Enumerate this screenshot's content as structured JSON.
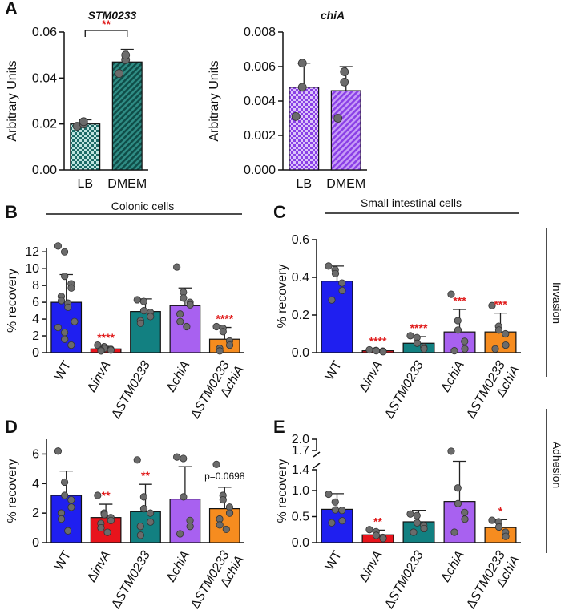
{
  "figure": {
    "panel_letters": [
      "A",
      "B",
      "C",
      "D",
      "E"
    ],
    "group_titles": {
      "colonic": "Colonic cells",
      "small_intestinal": "Small intestinal cells"
    },
    "side_labels": {
      "invasion": "Invasion",
      "adhesion": "Adhesion"
    }
  },
  "colors": {
    "WT": "#1f1ff0",
    "invA": "#e8141c",
    "STM0233": "#128081",
    "chiA": "#a861f0",
    "double": "#f68c1f",
    "teal_pattern": "#1c6b66",
    "purple_pattern": "#8a3fe6",
    "significance": "#e01b1b",
    "points": "#6b6b6b"
  },
  "chart_data": [
    {
      "id": "A1",
      "type": "bar",
      "title": "STM0233",
      "ylabel": "Arbitrary Units",
      "xlabel": "",
      "categories": [
        "LB",
        "DMEM"
      ],
      "values": [
        0.02,
        0.047
      ],
      "sd": [
        0.0018,
        0.0055
      ],
      "points": [
        [
          0.019,
          0.02,
          0.021
        ],
        [
          0.042,
          0.048,
          0.05
        ]
      ],
      "ylim": [
        0,
        0.06
      ],
      "yticks": [
        "0.00",
        "0.02",
        "0.04",
        "0.06"
      ],
      "ytick_values": [
        0,
        0.02,
        0.04,
        0.06
      ],
      "bracket": {
        "between": [
          0,
          1
        ],
        "label": "**"
      }
    },
    {
      "id": "A2",
      "type": "bar",
      "title": "chiA",
      "ylabel": "Arbitrary Units",
      "xlabel": "",
      "categories": [
        "LB",
        "DMEM"
      ],
      "values": [
        0.0048,
        0.0046
      ],
      "sd": [
        0.0014,
        0.0014
      ],
      "points": [
        [
          0.0031,
          0.0048,
          0.0062
        ],
        [
          0.003,
          0.0051,
          0.0057
        ]
      ],
      "ylim": [
        0,
        0.008
      ],
      "yticks": [
        "0.000",
        "0.002",
        "0.004",
        "0.006",
        "0.008"
      ],
      "ytick_values": [
        0,
        0.002,
        0.004,
        0.006,
        0.008
      ]
    },
    {
      "id": "B",
      "type": "bar",
      "ylabel": "% recovery",
      "xlabel": "",
      "categories": [
        "WT",
        "ΔinvA",
        "ΔSTM0233",
        "ΔchiA",
        "ΔSTM0233\nΔchiA"
      ],
      "values": [
        6.0,
        0.45,
        4.9,
        5.6,
        1.6
      ],
      "sd": [
        3.3,
        0.3,
        1.5,
        2.1,
        1.4
      ],
      "points": [
        [
          12.7,
          12.0,
          9.1,
          8.2,
          7.7,
          6.7,
          6.2,
          5.9,
          5.4,
          3.7,
          3.0,
          2.4,
          1.6,
          0.9
        ],
        [
          0.9,
          0.7,
          0.5,
          0.4,
          0.3,
          0.3,
          0.2
        ],
        [
          6.3,
          6.1,
          5.0,
          4.8,
          4.3,
          3.8,
          3.5
        ],
        [
          10.2,
          7.2,
          6.5,
          6.0,
          5.7,
          4.6,
          3.7,
          3.1
        ],
        [
          3.1,
          2.9,
          2.5,
          1.4,
          0.9,
          0.5,
          0.2
        ]
      ],
      "ylim": [
        0,
        12.4
      ],
      "yticks": [
        "0",
        "2",
        "4",
        "6",
        "8",
        "10",
        "12"
      ],
      "ytick_values": [
        0,
        2,
        4,
        6,
        8,
        10,
        12
      ],
      "significance": [
        "",
        "****",
        "",
        "",
        "****"
      ]
    },
    {
      "id": "C",
      "type": "bar",
      "ylabel": "% recovery",
      "xlabel": "",
      "categories": [
        "WT",
        "ΔinvA",
        "ΔSTM0233",
        "ΔchiA",
        "ΔSTM0233\nΔchiA"
      ],
      "values": [
        0.38,
        0.01,
        0.05,
        0.11,
        0.11
      ],
      "sd": [
        0.08,
        0.005,
        0.035,
        0.12,
        0.1
      ],
      "points": [
        [
          0.46,
          0.44,
          0.42,
          0.37,
          0.33,
          0.28
        ],
        [
          0.015,
          0.012,
          0.01,
          0.008,
          0.005
        ],
        [
          0.09,
          0.08,
          0.05,
          0.03,
          0.02
        ],
        [
          0.31,
          0.17,
          0.12,
          0.06,
          0.02,
          0.01
        ],
        [
          0.25,
          0.14,
          0.12,
          0.1,
          0.04,
          0.02
        ]
      ],
      "ylim": [
        0,
        0.6
      ],
      "yticks": [
        "0.0",
        "0.2",
        "0.4",
        "0.6"
      ],
      "ytick_values": [
        0,
        0.2,
        0.4,
        0.6
      ],
      "significance": [
        "",
        "****",
        "****",
        "***",
        "***"
      ]
    },
    {
      "id": "D",
      "type": "bar",
      "ylabel": "% recovery",
      "xlabel": "",
      "categories": [
        "WT",
        "ΔinvA",
        "ΔSTM0233",
        "ΔchiA",
        "ΔSTM0233\nΔchiA"
      ],
      "values": [
        3.2,
        1.7,
        2.1,
        2.95,
        2.3
      ],
      "sd": [
        1.65,
        0.9,
        1.85,
        2.2,
        1.45
      ],
      "points": [
        [
          6.2,
          4.1,
          3.2,
          2.9,
          2.4,
          2.0,
          1.6,
          0.8
        ],
        [
          3.2,
          2.0,
          1.9,
          1.7,
          1.5,
          1.3,
          1.0,
          0.7
        ],
        [
          5.6,
          3.1,
          2.3,
          2.0,
          1.4,
          1.1,
          0.5
        ],
        [
          5.8,
          5.7,
          3.1,
          1.5,
          1.1,
          0.6
        ],
        [
          5.3,
          3.2,
          2.9,
          2.4,
          2.0,
          1.6,
          1.2,
          0.9
        ]
      ],
      "ylim": [
        0,
        7
      ],
      "yticks": [
        "0",
        "2",
        "4",
        "6"
      ],
      "ytick_values": [
        0,
        2,
        4,
        6
      ],
      "significance": [
        "",
        "**",
        "**",
        "",
        "p=0.0698"
      ]
    },
    {
      "id": "E",
      "type": "bar",
      "ylabel": "% recovery",
      "xlabel": "",
      "categories": [
        "WT",
        "ΔinvA",
        "ΔSTM0233",
        "ΔchiA",
        "ΔSTM0233\nΔchiA"
      ],
      "values": [
        0.64,
        0.15,
        0.4,
        0.79,
        0.29
      ],
      "sd": [
        0.3,
        0.09,
        0.22,
        0.62,
        0.15
      ],
      "points": [
        [
          0.93,
          0.78,
          0.63,
          0.62,
          0.42,
          0.38
        ],
        [
          0.25,
          0.21,
          0.14,
          0.1,
          0.08
        ],
        [
          0.55,
          0.52,
          0.38,
          0.33,
          0.27,
          0.2
        ],
        [
          1.68,
          1.05,
          0.75,
          0.58,
          0.45,
          0.2
        ],
        [
          0.43,
          0.4,
          0.3,
          0.2,
          0.12
        ]
      ],
      "ylim": [
        0,
        2.0
      ],
      "axis_break": [
        1.4,
        1.7
      ],
      "yticks": [
        "0.0",
        "0.5",
        "1.0",
        "1.4",
        "1.7",
        "2.0"
      ],
      "ytick_values": [
        0,
        0.5,
        1.0,
        1.4,
        1.7,
        2.0
      ],
      "significance": [
        "",
        "**",
        "",
        "",
        "*"
      ]
    }
  ]
}
